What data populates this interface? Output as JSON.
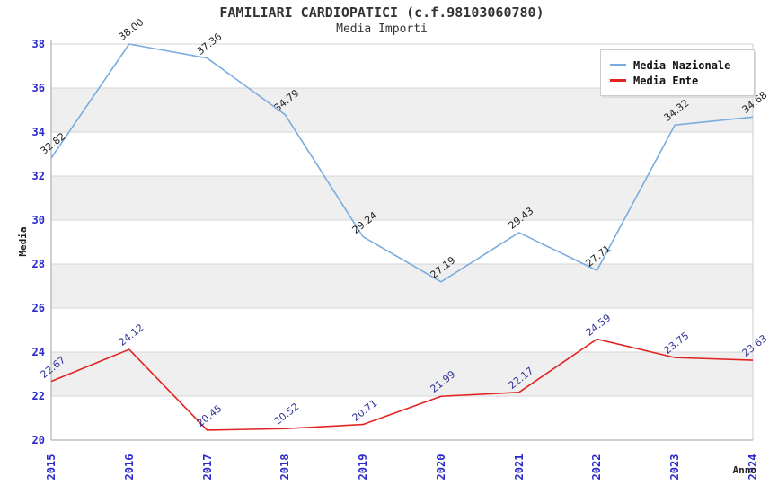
{
  "chart_data": {
    "type": "line",
    "title": "FAMILIARI CARDIOPATICI (c.f.98103060780)",
    "subtitle": "Media Importi",
    "xlabel": "Anno",
    "ylabel": "Media",
    "x": [
      "2015",
      "2016",
      "2017",
      "2018",
      "2019",
      "2020",
      "2021",
      "2022",
      "2023",
      "2024"
    ],
    "ylim": [
      20,
      38
    ],
    "yticks": [
      20,
      22,
      24,
      26,
      28,
      30,
      32,
      34,
      36,
      38
    ],
    "grid": true,
    "legend_position": "top-right",
    "series": [
      {
        "name": "Media Nazionale",
        "color": "#7aacde",
        "label_color": "#222222",
        "values": [
          32.82,
          38.0,
          37.36,
          34.79,
          29.24,
          27.19,
          29.43,
          27.71,
          34.32,
          34.68
        ]
      },
      {
        "name": "Media Ente",
        "color": "#e32222",
        "label_color": "#333399",
        "values": [
          22.67,
          24.12,
          20.45,
          20.52,
          20.71,
          21.99,
          22.17,
          24.59,
          23.75,
          23.63
        ]
      }
    ],
    "colors": {
      "background": "#ffffff",
      "tick_label": "#2929cc",
      "band_fill": "#efefef",
      "band_alt_fill": "#ffffff",
      "gridline": "#d4d4d4",
      "axis_line": "#a0a0a0",
      "frame_line": "#cccccc",
      "title_text": "#333333",
      "legend_text": "#111111",
      "legend_border": "#cccccc"
    }
  }
}
